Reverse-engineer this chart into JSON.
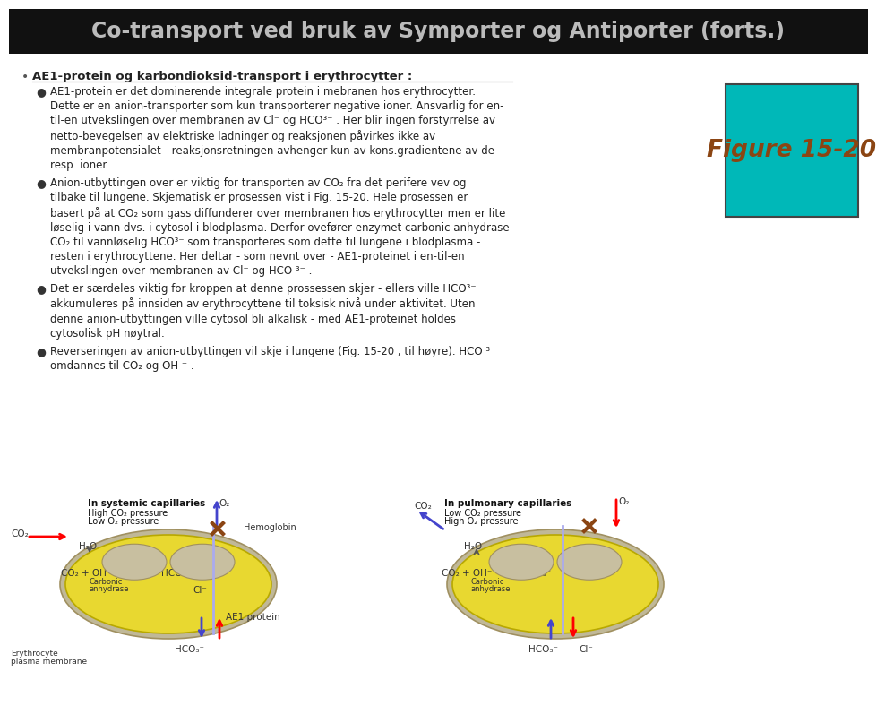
{
  "title": "Co-transport ved bruk av Symporter og Antiporter (forts.)",
  "title_bg": "#111111",
  "title_color": "#bbbbbb",
  "bg_color": "#ffffff",
  "bullet_color": "#222222",
  "main_bullet": "AE1-protein og karbondioksid-transport i erythrocytter :",
  "bullets": [
    "AE1-protein er det dominerende integrale protein i mebranen hos erythrocytter.\nDette er en anion-transporter som kun transporterer negative ioner. Ansvarlig for en-\ntil-en utvekslingen over membranen av Cl⁻ og HCO³⁻ . Her blir ingen forstyrrelse av\nnetto-bevegelsen av elektriske ladninger og reaksjonen påvirkes ikke av\nmembranpotensialet - reaksjonsretningen avhenger kun av kons.gradientene av de\nresp. ioner.",
    "Anion-utbyttingen over er viktig for transporten av CO₂ fra det perifere vev og\ntilbake til lungene. Skjematisk er prosessen vist i Fig. 15-20. Hele prosessen er\nbasert på at CO₂ som gass diffunderer over membranen hos erythrocytter men er lite\nløselig i vann dvs. i cytosol i blodplasma. Derfor ovefører enzymet carbonic anhydrase\nCO₂ til vannløselig HCO³⁻ som transporteres som dette til lungene i blodplasma -\nresten i erythrocyttene. Her deltar - som nevnt over - AE1-proteinet i en-til-en\nutvekslingen over membranen av Cl⁻ og HCO ³⁻ .",
    "Det er særdeles viktig for kroppen at denne prossessen skjer - ellers ville HCO³⁻\nakkumuleres på innsiden av erythrocyttene til toksisk nivå under aktivitet. Uten\ndenne anion-utbyttingen ville cytosol bli alkalisk - med AE1-proteinet holdes\ncytosolisk pH nøytral.",
    "Reverseringen av anion-utbyttingen vil skje i lungene (Fig. 15-20 , til høyre). HCO ³⁻\nomdannes til CO₂ og OH ⁻ ."
  ],
  "figure_label": "Figure 15-20",
  "figure_bg": "#00b8b8",
  "figure_text_color": "#8B4513",
  "cell_fill": "#e8d830",
  "cell_edge": "#b8a800",
  "bump_fill": "#c8bfa0",
  "bump_edge": "#a09060"
}
